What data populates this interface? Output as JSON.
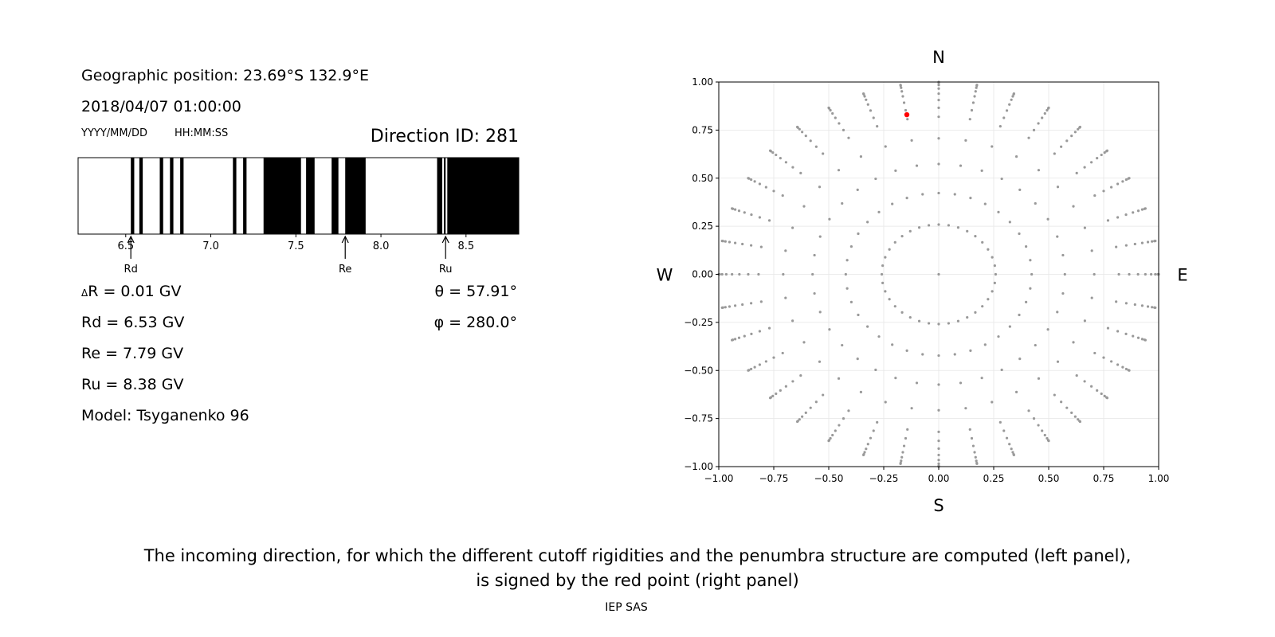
{
  "left_panel": {
    "geo_position": "Geographic position: 23.69°S 132.9°E",
    "datetime": "2018/04/07 01:00:00",
    "date_format_hint": "YYYY/MM/DD",
    "time_format_hint": "HH:MM:SS",
    "direction_id": "Direction ID: 281",
    "delta_r": "R = 0.01 GV",
    "delta_symbol": "Δ",
    "rd": "Rd = 6.53 GV",
    "re": "Re = 7.79 GV",
    "ru": "Ru = 8.38 GV",
    "model": "Model: Tsyganenko 96",
    "theta": "θ = 57.91°",
    "phi": "φ = 280.0°"
  },
  "caption": {
    "line1": "The incoming direction, for which the different cutoff rigidities and the penumbra structure are computed (left panel),",
    "line2": "is signed by the red point (right panel)",
    "credit": "IEP SAS"
  },
  "chart_data": [
    {
      "type": "penumbra-bar",
      "xlim": [
        6.22,
        8.81
      ],
      "xticks": [
        6.5,
        7.0,
        7.5,
        8.0,
        8.5
      ],
      "tick_labels": [
        "6.5",
        "7.0",
        "7.5",
        "8.0",
        "8.5"
      ],
      "forbidden_intervals": [
        [
          6.53,
          6.55
        ],
        [
          6.58,
          6.6
        ],
        [
          6.7,
          6.72
        ],
        [
          6.76,
          6.78
        ],
        [
          6.82,
          6.84
        ],
        [
          7.13,
          7.15
        ],
        [
          7.19,
          7.21
        ],
        [
          7.31,
          7.53
        ],
        [
          7.56,
          7.61
        ],
        [
          7.71,
          7.75
        ],
        [
          7.79,
          7.91
        ],
        [
          8.33,
          8.36
        ],
        [
          8.37,
          8.38
        ],
        [
          8.39,
          8.81
        ]
      ],
      "markers": [
        {
          "label": "Rd",
          "value": 6.53
        },
        {
          "label": "Re",
          "value": 7.79
        },
        {
          "label": "Ru",
          "value": 8.38
        }
      ]
    },
    {
      "type": "scatter",
      "xlim": [
        -1.0,
        1.0
      ],
      "ylim": [
        -1.0,
        1.0
      ],
      "xticks": [
        -1.0,
        -0.75,
        -0.5,
        -0.25,
        0.0,
        0.25,
        0.5,
        0.75,
        1.0
      ],
      "yticks": [
        -1.0,
        -0.75,
        -0.5,
        -0.25,
        0.0,
        0.25,
        0.5,
        0.75,
        1.0
      ],
      "xtick_labels": [
        "−1.00",
        "−0.75",
        "−0.50",
        "−0.25",
        "0.00",
        "0.25",
        "0.50",
        "0.75",
        "1.00"
      ],
      "ytick_labels": [
        "−1.00",
        "−0.75",
        "−0.50",
        "−0.25",
        "0.00",
        "0.25",
        "0.50",
        "0.75",
        "1.00"
      ],
      "grid": true,
      "directions": {
        "top": "N",
        "bottom": "S",
        "left": "W",
        "right": "E"
      },
      "direction_grid": {
        "description_free": true,
        "zenith_angles_deg": [
          0,
          15,
          25,
          35,
          45,
          55,
          60,
          65,
          70,
          75,
          80,
          85,
          90
        ],
        "azimuth_step_deg": 10,
        "color": "#999999"
      },
      "highlight_point": {
        "x": -0.145,
        "y": 0.83,
        "color": "#ff0000"
      }
    }
  ]
}
